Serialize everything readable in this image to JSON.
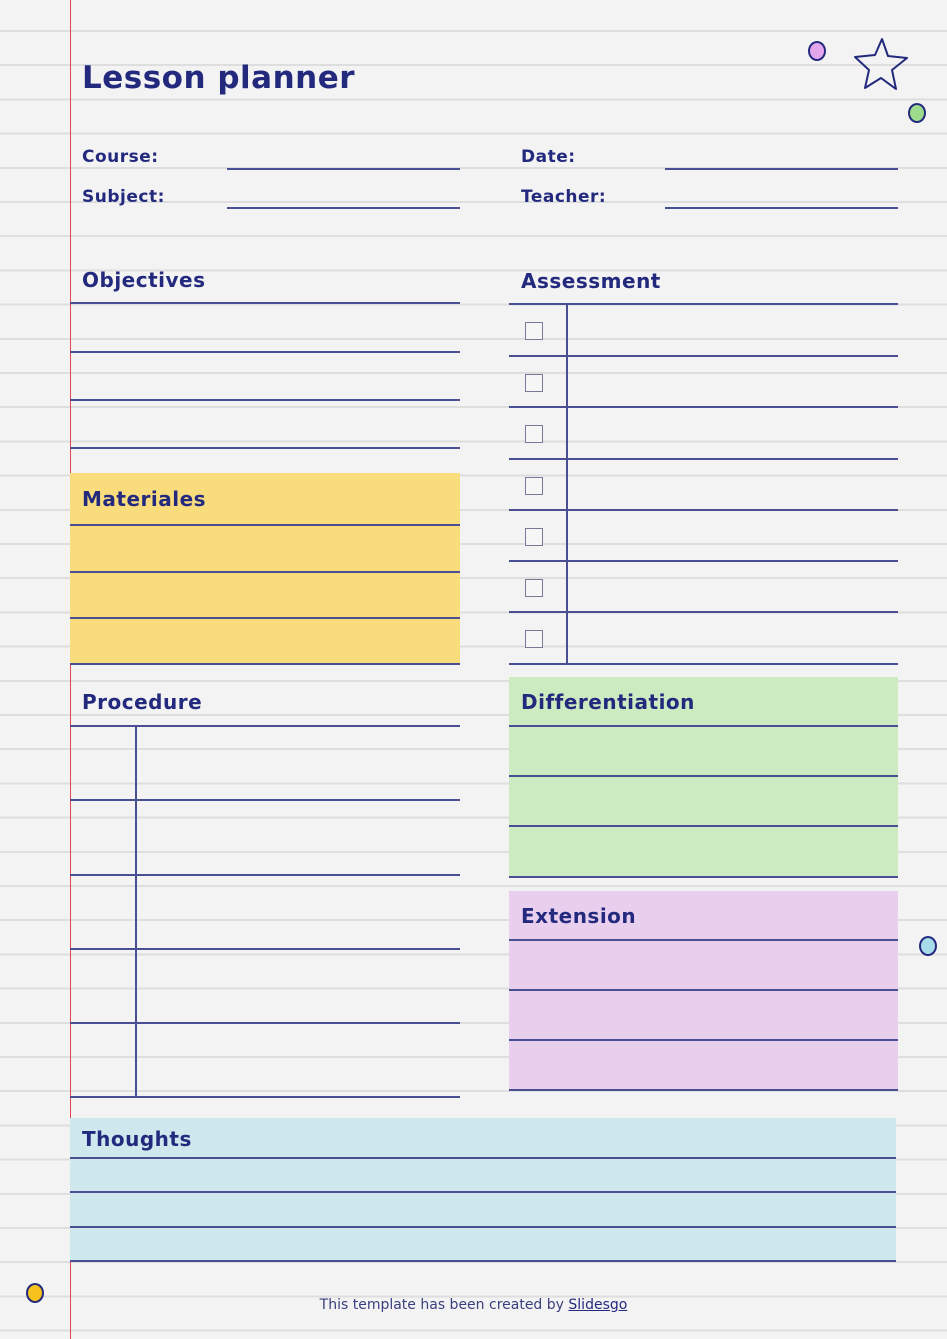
{
  "title": "Lesson planner",
  "fields": {
    "course": "Course:",
    "subject": "Subject:",
    "date": "Date:",
    "teacher": "Teacher:"
  },
  "sections": {
    "objectives": "Objectives",
    "assessment": "Assessment",
    "materials": "Materiales",
    "procedure": "Procedure",
    "differentiation": "Differentiation",
    "extension": "Extension",
    "thoughts": "Thoughts"
  },
  "assessment_checkboxes": [
    false,
    false,
    false,
    false,
    false,
    false,
    false
  ],
  "footer": {
    "text": "This template has been created by ",
    "link": "Slidesgo"
  },
  "colors": {
    "ink": "#232a7e",
    "margin_line": "#e0474c",
    "materials_bg": "#f9dc7c",
    "differentiation_bg": "#cdebc0",
    "extension_bg": "#e9cfee",
    "thoughts_bg": "#cfe8ee",
    "dot_pink": "#e3a6ec",
    "dot_green": "#9ddc8a",
    "dot_blue": "#a8dbe9",
    "dot_yellow": "#f7c21b"
  }
}
